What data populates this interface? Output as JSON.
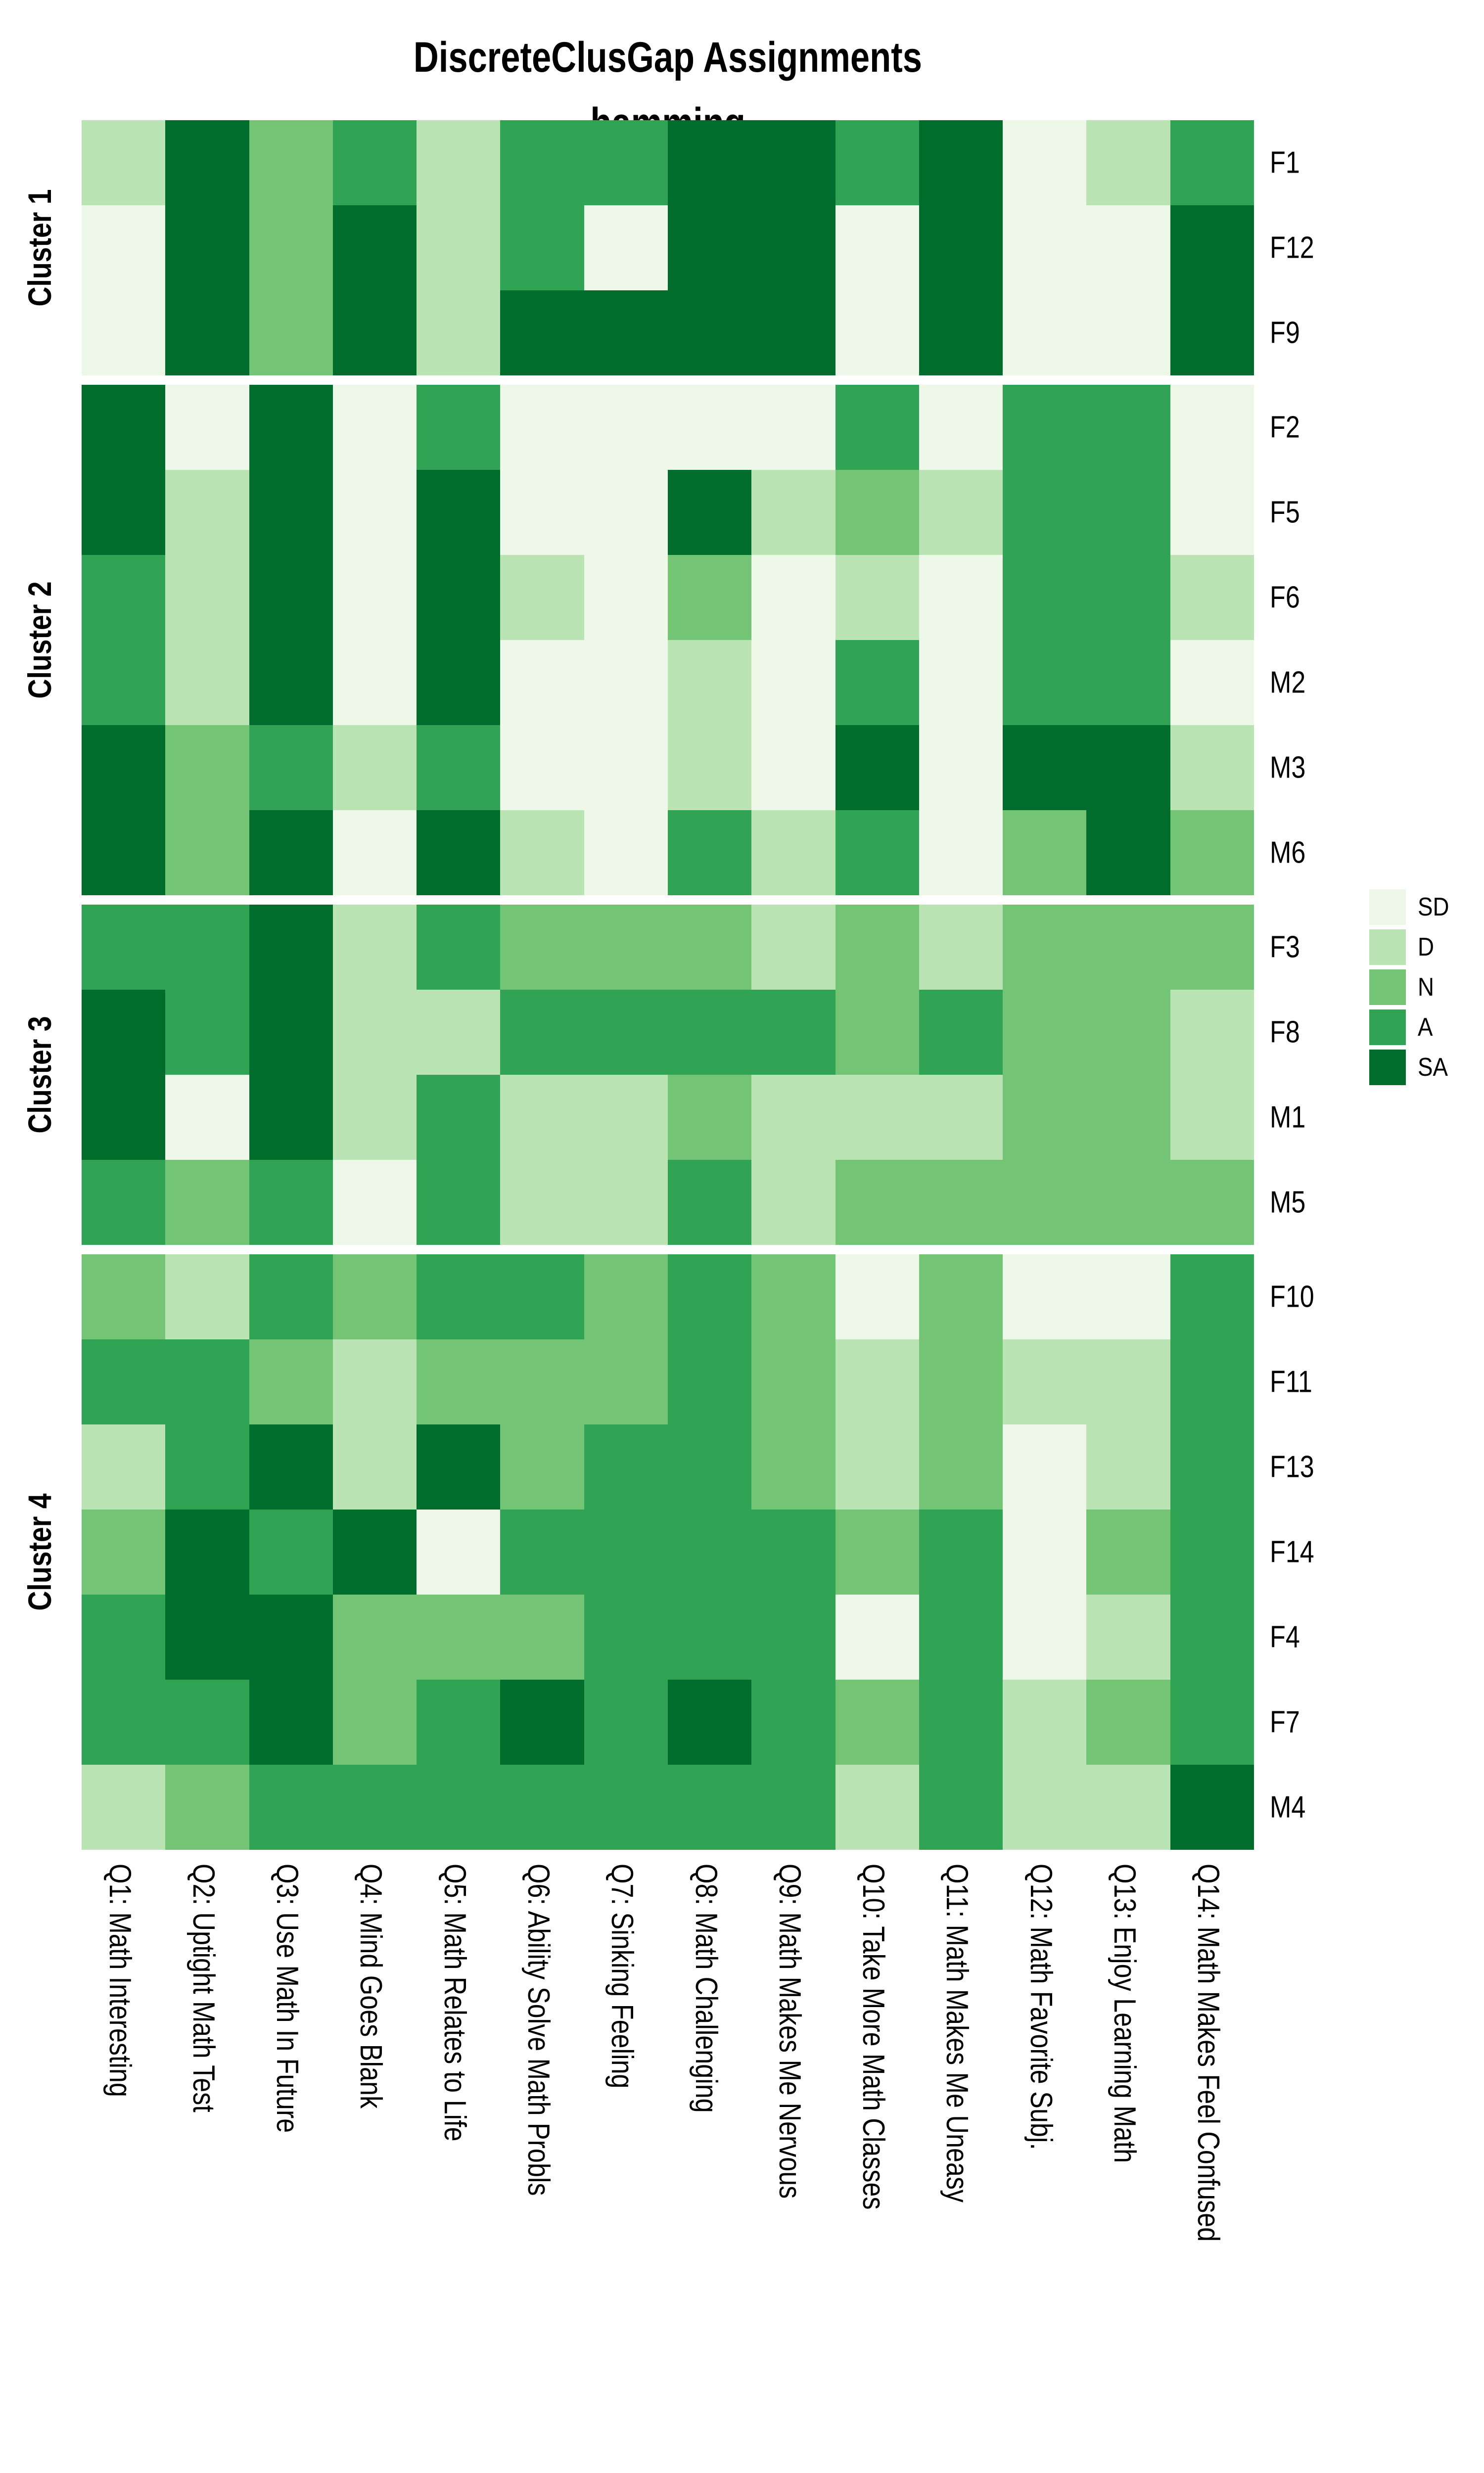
{
  "chart_data": {
    "type": "heatmap",
    "title": "DiscreteClusGap Assignments",
    "subtitle": "hamming",
    "legend": {
      "position": "right",
      "levels": [
        {
          "label": "SD",
          "color": "#EDF8E9"
        },
        {
          "label": "D",
          "color": "#BAE4B3"
        },
        {
          "label": "N",
          "color": "#74C476"
        },
        {
          "label": "A",
          "color": "#31A354"
        },
        {
          "label": "SA",
          "color": "#006D2C"
        }
      ]
    },
    "value_scale": {
      "SD": 1,
      "D": 2,
      "N": 3,
      "A": 4,
      "SA": 5
    },
    "columns": [
      "Q1: Math Interesting",
      "Q2: Uptight Math Test",
      "Q3: Use Math In Future",
      "Q4: Mind Goes Blank",
      "Q5: Math Relates to Life",
      "Q6: Ability Solve Math Probls",
      "Q7: Sinking Feeling",
      "Q8: Math Challenging",
      "Q9: Math Makes Me Nervous",
      "Q10: Take More Math Classes",
      "Q11: Math Makes Me Uneasy",
      "Q12: Math Favorite Subj.",
      "Q13: Enjoy Learning Math",
      "Q14: Math Makes Feel Confused"
    ],
    "clusters": [
      {
        "label": "Cluster 1",
        "rows": [
          {
            "label": "F1",
            "values": [
              "D",
              "SA",
              "N",
              "A",
              "D",
              "A",
              "A",
              "SA",
              "SA",
              "A",
              "SA",
              "SD",
              "D",
              "A"
            ]
          },
          {
            "label": "F12",
            "values": [
              "SD",
              "SA",
              "N",
              "SA",
              "D",
              "A",
              "SD",
              "SA",
              "SA",
              "SD",
              "SA",
              "SD",
              "SD",
              "SA"
            ]
          },
          {
            "label": "F9",
            "values": [
              "SD",
              "SA",
              "N",
              "SA",
              "D",
              "SA",
              "SA",
              "SA",
              "SA",
              "SD",
              "SA",
              "SD",
              "SD",
              "SA"
            ]
          }
        ]
      },
      {
        "label": "Cluster 2",
        "rows": [
          {
            "label": "F2",
            "values": [
              "SA",
              "SD",
              "SA",
              "SD",
              "A",
              "SD",
              "SD",
              "SD",
              "SD",
              "A",
              "SD",
              "A",
              "A",
              "SD"
            ]
          },
          {
            "label": "F5",
            "values": [
              "SA",
              "D",
              "SA",
              "SD",
              "SA",
              "SD",
              "SD",
              "SA",
              "D",
              "N",
              "D",
              "A",
              "A",
              "SD"
            ]
          },
          {
            "label": "F6",
            "values": [
              "A",
              "D",
              "SA",
              "SD",
              "SA",
              "D",
              "SD",
              "N",
              "SD",
              "D",
              "SD",
              "A",
              "A",
              "D"
            ]
          },
          {
            "label": "M2",
            "values": [
              "A",
              "D",
              "SA",
              "SD",
              "SA",
              "SD",
              "SD",
              "D",
              "SD",
              "A",
              "SD",
              "A",
              "A",
              "SD"
            ]
          },
          {
            "label": "M3",
            "values": [
              "SA",
              "N",
              "A",
              "D",
              "A",
              "SD",
              "SD",
              "D",
              "SD",
              "SA",
              "SD",
              "SA",
              "SA",
              "D"
            ]
          },
          {
            "label": "M6",
            "values": [
              "SA",
              "N",
              "SA",
              "SD",
              "SA",
              "D",
              "SD",
              "A",
              "D",
              "A",
              "SD",
              "N",
              "SA",
              "N"
            ]
          }
        ]
      },
      {
        "label": "Cluster 3",
        "rows": [
          {
            "label": "F3",
            "values": [
              "A",
              "A",
              "SA",
              "D",
              "A",
              "N",
              "N",
              "N",
              "D",
              "N",
              "D",
              "N",
              "N",
              "N"
            ]
          },
          {
            "label": "F8",
            "values": [
              "SA",
              "A",
              "SA",
              "D",
              "D",
              "A",
              "A",
              "A",
              "A",
              "N",
              "A",
              "N",
              "N",
              "D"
            ]
          },
          {
            "label": "M1",
            "values": [
              "SA",
              "SD",
              "SA",
              "D",
              "A",
              "D",
              "D",
              "N",
              "D",
              "D",
              "D",
              "N",
              "N",
              "D"
            ]
          },
          {
            "label": "M5",
            "values": [
              "A",
              "N",
              "A",
              "SD",
              "A",
              "D",
              "D",
              "A",
              "D",
              "N",
              "N",
              "N",
              "N",
              "N"
            ]
          }
        ]
      },
      {
        "label": "Cluster 4",
        "rows": [
          {
            "label": "F10",
            "values": [
              "N",
              "D",
              "A",
              "N",
              "A",
              "A",
              "N",
              "A",
              "N",
              "SD",
              "N",
              "SD",
              "SD",
              "A"
            ]
          },
          {
            "label": "F11",
            "values": [
              "A",
              "A",
              "N",
              "D",
              "N",
              "N",
              "N",
              "A",
              "N",
              "D",
              "N",
              "D",
              "D",
              "A"
            ]
          },
          {
            "label": "F13",
            "values": [
              "D",
              "A",
              "SA",
              "D",
              "SA",
              "N",
              "A",
              "A",
              "N",
              "D",
              "N",
              "SD",
              "D",
              "A"
            ]
          },
          {
            "label": "F14",
            "values": [
              "N",
              "SA",
              "A",
              "SA",
              "SD",
              "A",
              "A",
              "A",
              "A",
              "N",
              "A",
              "SD",
              "N",
              "A"
            ]
          },
          {
            "label": "F4",
            "values": [
              "A",
              "SA",
              "SA",
              "N",
              "N",
              "N",
              "A",
              "A",
              "A",
              "SD",
              "A",
              "SD",
              "D",
              "A"
            ]
          },
          {
            "label": "F7",
            "values": [
              "A",
              "A",
              "SA",
              "N",
              "A",
              "SA",
              "A",
              "SA",
              "A",
              "N",
              "A",
              "D",
              "N",
              "A"
            ]
          },
          {
            "label": "M4",
            "values": [
              "D",
              "N",
              "A",
              "A",
              "A",
              "A",
              "A",
              "A",
              "A",
              "D",
              "A",
              "D",
              "D",
              "SA"
            ]
          }
        ]
      }
    ]
  }
}
